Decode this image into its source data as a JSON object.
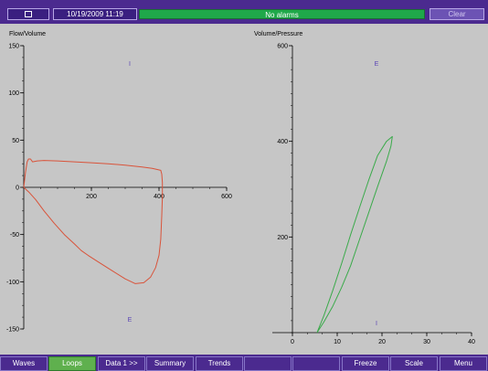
{
  "topbar": {
    "menu_icon": "window-icon",
    "datetime": "10/19/2009 11:19",
    "alarm_status": "No alarms",
    "clear_label": "Clear"
  },
  "colors": {
    "bar_purple": "#4b2a8f",
    "alarm_green": "#1fa84a",
    "flow_loop": "#d9533a",
    "pressure_loop": "#3aaa4a",
    "marker_text": "#5a44b5"
  },
  "bottombar": {
    "tabs": [
      {
        "label": "Waves",
        "active": false
      },
      {
        "label": "Loops",
        "active": true
      },
      {
        "label": "Data 1 >>",
        "active": false
      },
      {
        "label": "Summary",
        "active": false
      },
      {
        "label": "Trends",
        "active": false
      },
      {
        "label": "",
        "active": false
      },
      {
        "label": "",
        "active": false
      },
      {
        "label": "Freeze",
        "active": false
      },
      {
        "label": "Scale",
        "active": false
      },
      {
        "label": "Menu",
        "active": false
      }
    ]
  },
  "chart_data": [
    {
      "type": "line",
      "title": "Flow/Volume",
      "xlabel": "",
      "ylabel": "",
      "xlim": [
        0,
        600
      ],
      "ylim": [
        -150,
        150
      ],
      "xticks": [
        200,
        400,
        600
      ],
      "yticks": [
        150,
        100,
        50,
        0,
        -50,
        -100,
        -150
      ],
      "grid": false,
      "markers": {
        "top": "I",
        "bottom": "E"
      },
      "series": [
        {
          "points": [
            [
              0,
              0
            ],
            [
              5,
              16
            ],
            [
              10,
              27
            ],
            [
              14,
              30
            ],
            [
              20,
              30
            ],
            [
              26,
              27
            ],
            [
              40,
              28
            ],
            [
              60,
              28.5
            ],
            [
              100,
              28
            ],
            [
              150,
              27
            ],
            [
              200,
              26
            ],
            [
              250,
              25
            ],
            [
              300,
              23.5
            ],
            [
              350,
              21.5
            ],
            [
              380,
              20
            ],
            [
              405,
              18
            ],
            [
              408,
              14
            ],
            [
              410,
              5
            ],
            [
              410,
              -10
            ],
            [
              408,
              -30
            ],
            [
              405,
              -55
            ],
            [
              400,
              -72
            ],
            [
              390,
              -85
            ],
            [
              375,
              -95
            ],
            [
              355,
              -101
            ],
            [
              330,
              -102
            ],
            [
              300,
              -97
            ],
            [
              260,
              -88
            ],
            [
              220,
              -79
            ],
            [
              190,
              -72
            ],
            [
              170,
              -67
            ],
            [
              150,
              -60
            ],
            [
              120,
              -50
            ],
            [
              90,
              -38
            ],
            [
              60,
              -25
            ],
            [
              35,
              -13
            ],
            [
              15,
              -5
            ],
            [
              0,
              0
            ]
          ]
        }
      ]
    },
    {
      "type": "line",
      "title": "Volume/Pressure",
      "xlabel": "",
      "ylabel": "",
      "xlim": [
        0,
        40
      ],
      "ylim": [
        0,
        600
      ],
      "xticks": [
        0,
        10,
        20,
        30,
        40
      ],
      "yticks": [
        200,
        400,
        600
      ],
      "grid": false,
      "markers": {
        "top": "E",
        "bottom": "I"
      },
      "series": [
        {
          "points": [
            [
              5.5,
              0
            ],
            [
              7,
              35
            ],
            [
              9,
              88
            ],
            [
              11,
              145
            ],
            [
              13,
              205
            ],
            [
              15,
              262
            ],
            [
              17,
              318
            ],
            [
              19,
              370
            ],
            [
              21,
              400
            ],
            [
              22.3,
              410
            ],
            [
              22,
              390
            ],
            [
              21,
              358
            ],
            [
              19,
              305
            ],
            [
              17,
              250
            ],
            [
              15,
              195
            ],
            [
              13,
              140
            ],
            [
              11,
              95
            ],
            [
              9,
              55
            ],
            [
              7,
              22
            ],
            [
              5.5,
              0
            ]
          ]
        }
      ]
    }
  ]
}
